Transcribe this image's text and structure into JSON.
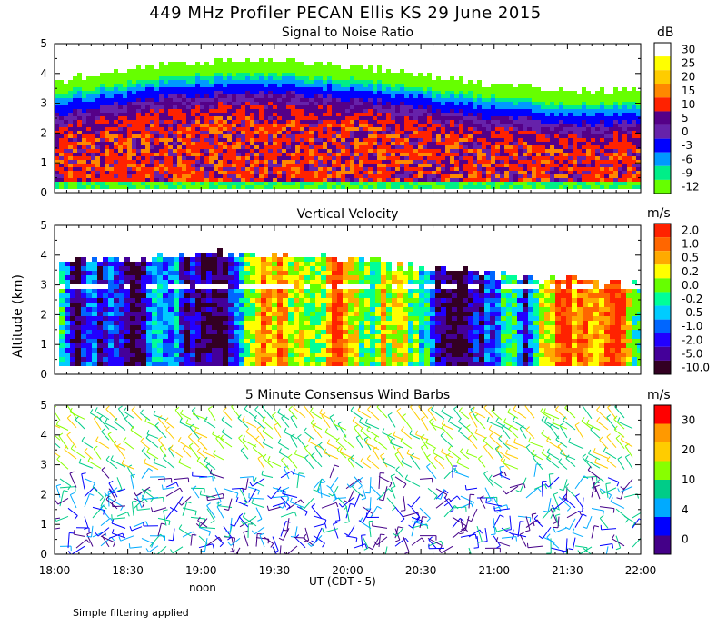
{
  "title": "449 MHz Profiler PECAN Ellis KS 29 June 2015",
  "y_axis_label": "Altitude (km)",
  "x_axis_label": "UT  (CDT - 5)",
  "noon_label": "noon",
  "footnote": "Simple filtering applied",
  "x_ticks": [
    "18:00",
    "18:30",
    "19:00",
    "19:30",
    "20:00",
    "20:30",
    "21:00",
    "21:30",
    "22:00"
  ],
  "y_ticks": [
    "0",
    "1",
    "2",
    "3",
    "4",
    "5"
  ],
  "chart_data": [
    {
      "type": "heatmap",
      "title": "Signal to Noise Ratio",
      "unit": "dB",
      "xlim": [
        "18:00",
        "22:00"
      ],
      "ylim": [
        0,
        5
      ],
      "colorbar": {
        "labels": [
          "30",
          "25",
          "20",
          "15",
          "10",
          "5",
          "0",
          "-3",
          "-6",
          "-9",
          "-12"
        ],
        "colors": [
          "#ffffff",
          "#ffff00",
          "#ffcc00",
          "#ff8800",
          "#ff2200",
          "#550088",
          "#6622aa",
          "#0000ff",
          "#0099ff",
          "#00ee88",
          "#66ff00"
        ]
      }
    },
    {
      "type": "heatmap",
      "title": "Vertical Velocity",
      "unit": "m/s",
      "xlim": [
        "18:00",
        "22:00"
      ],
      "ylim": [
        0,
        5
      ],
      "colorbar": {
        "labels": [
          "2.0",
          "1.0",
          "0.5",
          "0.2",
          "0.0",
          "-0.2",
          "-0.5",
          "-1.0",
          "-2.0",
          "-5.0",
          "-10.0"
        ],
        "colors": [
          "#ff2200",
          "#ff6600",
          "#ffaa00",
          "#ffff00",
          "#66ff00",
          "#00ff99",
          "#00ccff",
          "#0066ff",
          "#2200ff",
          "#440099",
          "#330022"
        ]
      }
    },
    {
      "type": "scatter",
      "title": "5 Minute Consensus Wind Barbs",
      "unit": "m/s",
      "xlim": [
        "18:00",
        "22:00"
      ],
      "ylim": [
        0,
        5
      ],
      "colorbar": {
        "labels": [
          "30",
          "20",
          "10",
          "4",
          "0"
        ],
        "colors": [
          "#ff0000",
          "#ff9900",
          "#ffcc00",
          "#88ff00",
          "#00cc88",
          "#00aaff",
          "#0000ff",
          "#440088"
        ]
      }
    }
  ]
}
